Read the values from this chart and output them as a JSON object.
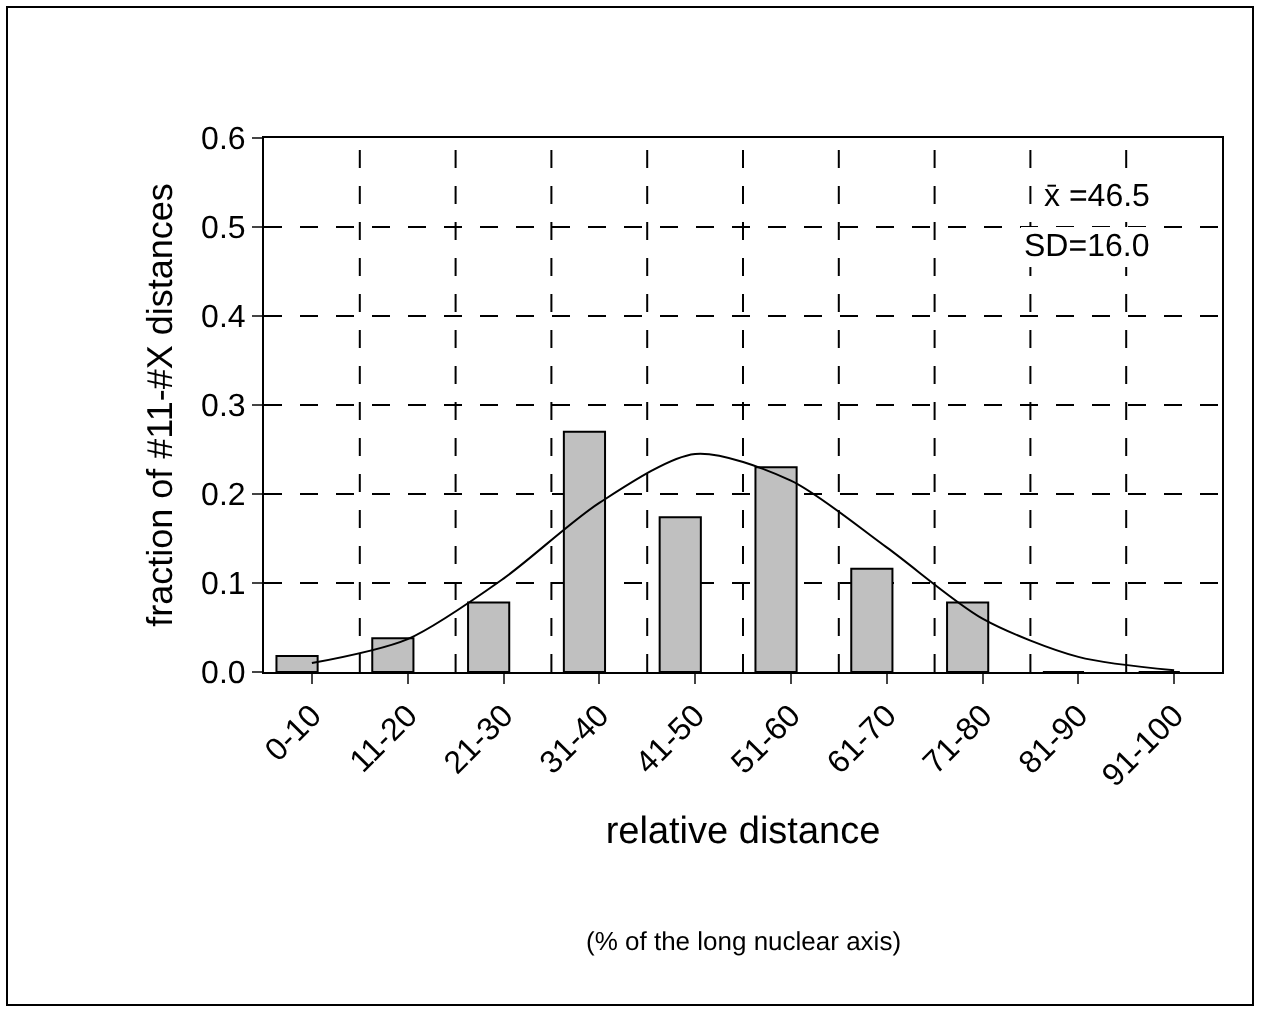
{
  "chart_data": {
    "type": "bar",
    "xlabel": "relative distance",
    "ylabel": "fraction of #11-#X distances",
    "categories": [
      "0-10",
      "11-20",
      "21-30",
      "31-40",
      "41-50",
      "51-60",
      "61-70",
      "71-80",
      "81-90",
      "91-100"
    ],
    "series": [
      {
        "color": "#c0c0c0",
        "values": [
          0.018,
          0.038,
          0.078,
          0.27,
          0.174,
          0.23,
          0.116,
          0.078,
          0,
          0
        ]
      },
      {
        "type": "line",
        "color": "#000000",
        "values": [
          0.01,
          0.037,
          0.105,
          0.19,
          0.245,
          0.215,
          0.14,
          0.06,
          0.017,
          0.002
        ]
      }
    ],
    "ylim": [
      0,
      0.6
    ],
    "yticks": [
      {
        "value": 0,
        "label": "0.0"
      },
      0.1,
      0.2,
      0.3,
      0.4,
      0.5,
      0.6
    ],
    "grid": true,
    "legend": false,
    "marker": "none",
    "annotations": [
      "x̄ =46.5",
      "SD=16.0",
      "(% of the long nuclear axis)"
    ]
  }
}
